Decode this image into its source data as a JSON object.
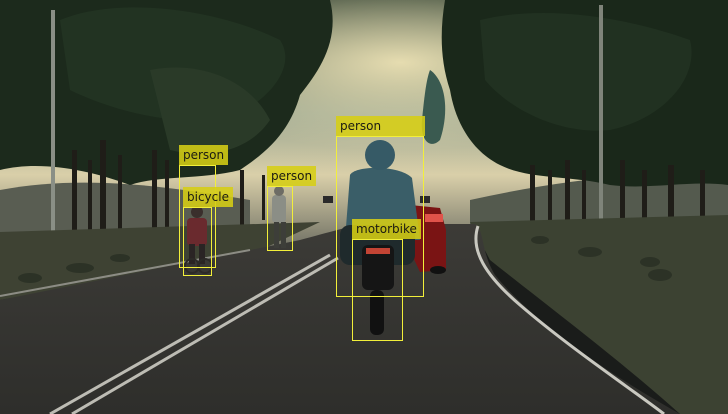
{
  "detections": [
    {
      "label": "person"
    },
    {
      "label": "bicycle"
    },
    {
      "label": "person"
    },
    {
      "label": "person"
    },
    {
      "label": "motorbike"
    }
  ],
  "colors": {
    "box_stroke": "#f2ef3a",
    "label_bg": "#d6ce14",
    "label_text": "#1b1b12"
  }
}
